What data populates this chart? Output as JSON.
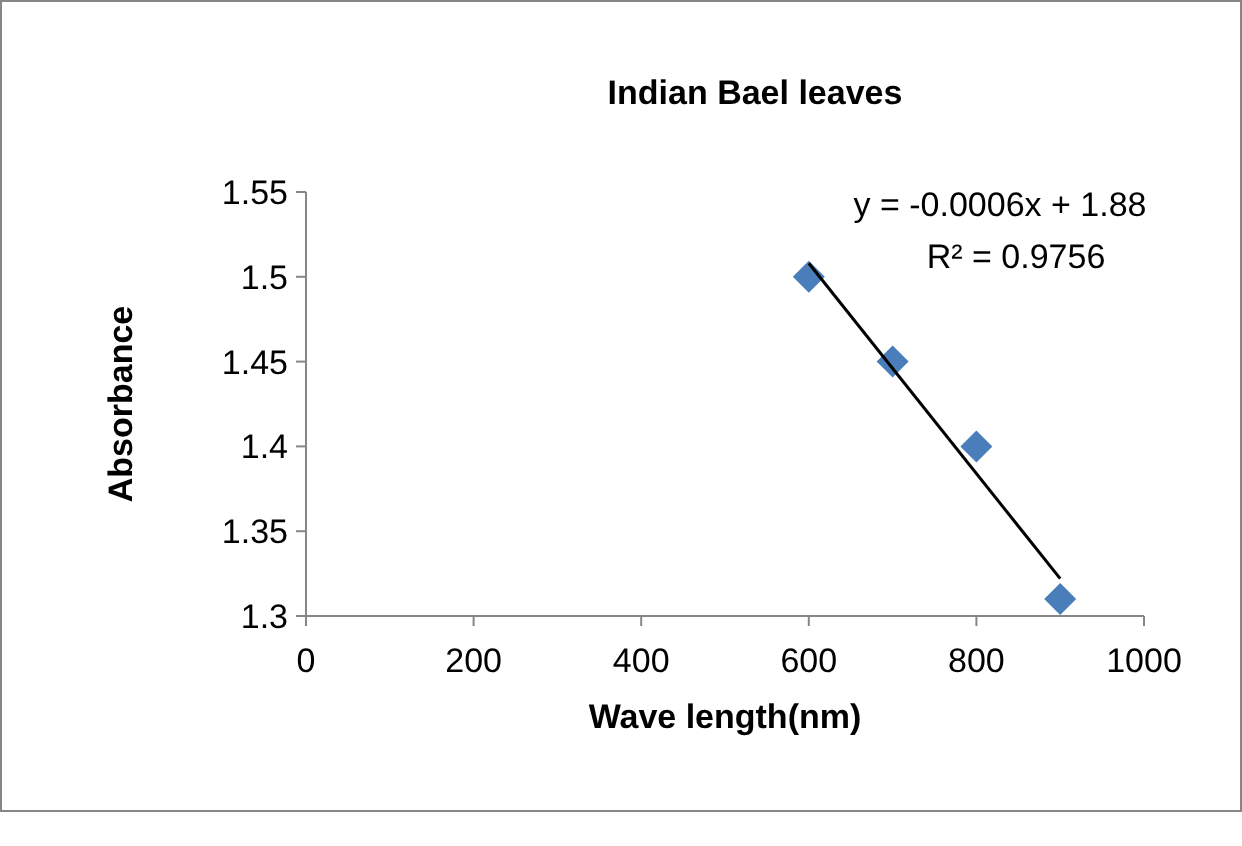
{
  "chart_data": {
    "type": "scatter",
    "title": "Indian Bael leaves",
    "xlabel": "Wave length(nm)",
    "ylabel": "Absorbance",
    "series": [
      {
        "color": "#4a7ebb",
        "x": [
          600,
          700,
          800,
          900
        ],
        "values": [
          1.5,
          1.45,
          1.4,
          1.31
        ],
        "marker": "diamond"
      },
      {
        "type": "line",
        "color": "#000000",
        "x": [
          600,
          900
        ],
        "values": [
          1.508,
          1.322
        ],
        "marker": "none",
        "line_style": "solid"
      }
    ],
    "annotations": [
      "y = -0.0006x + 1.88",
      "R² = 0.9756"
    ],
    "xlim": [
      0,
      1000
    ],
    "xticks": [
      0,
      200,
      400,
      600,
      800,
      1000
    ],
    "ylim": [
      1.3,
      1.55
    ],
    "yticks": [
      1.3,
      1.35,
      1.4,
      1.45,
      1.5,
      1.55
    ],
    "grid": false
  }
}
